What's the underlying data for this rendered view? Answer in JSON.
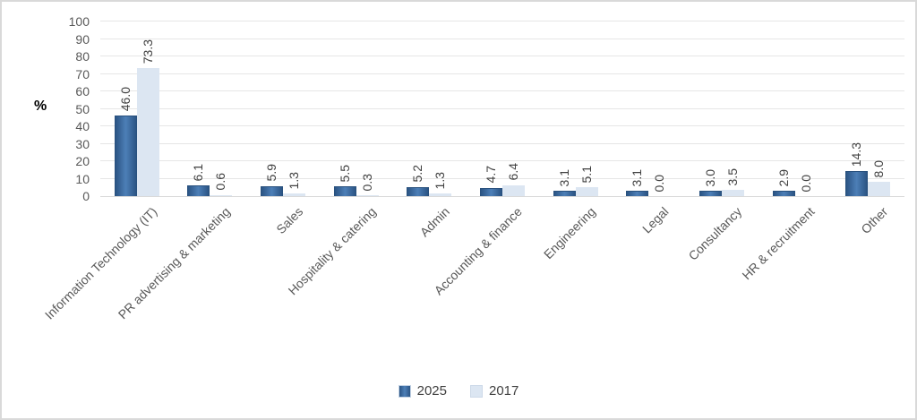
{
  "chart_data": {
    "type": "bar",
    "title": "",
    "ylabel": "%",
    "ylim": [
      0,
      100
    ],
    "yticks": [
      0,
      10,
      20,
      30,
      40,
      50,
      60,
      70,
      80,
      90,
      100
    ],
    "grid": true,
    "legend_position": "bottom",
    "value_labels": "one-decimal, rotated vertical above bars",
    "categories": [
      "Information Technology (IT)",
      "PR advertising & marketing",
      "Sales",
      "Hospitality & catering",
      "Admin",
      "Accounting & finance",
      "Engineering",
      "Legal",
      "Consultancy",
      "HR & recruitment",
      "Other"
    ],
    "series": [
      {
        "name": "2025",
        "color": "#3b6aa0",
        "color_gradient": [
          "#2b5484",
          "#4d7fb7",
          "#2b5484"
        ],
        "border_color": "#29517e",
        "values": [
          46.0,
          6.1,
          5.9,
          5.5,
          5.2,
          4.7,
          3.1,
          3.1,
          3.0,
          2.9,
          14.3
        ]
      },
      {
        "name": "2017",
        "color": "#dce6f2",
        "border_color": "#cdd9e8",
        "values": [
          73.3,
          0.6,
          1.3,
          0.3,
          1.3,
          6.4,
          5.1,
          0.0,
          3.5,
          0.0,
          8.0
        ]
      }
    ]
  },
  "colors": {
    "background": "#ffffff",
    "chart_border": "#d9d9d9",
    "gridline": "#e6e6e6",
    "baseline": "#d9d9d9",
    "axis_text": "#595959",
    "value_label_text": "#404040",
    "y_title_text": "#000000"
  }
}
